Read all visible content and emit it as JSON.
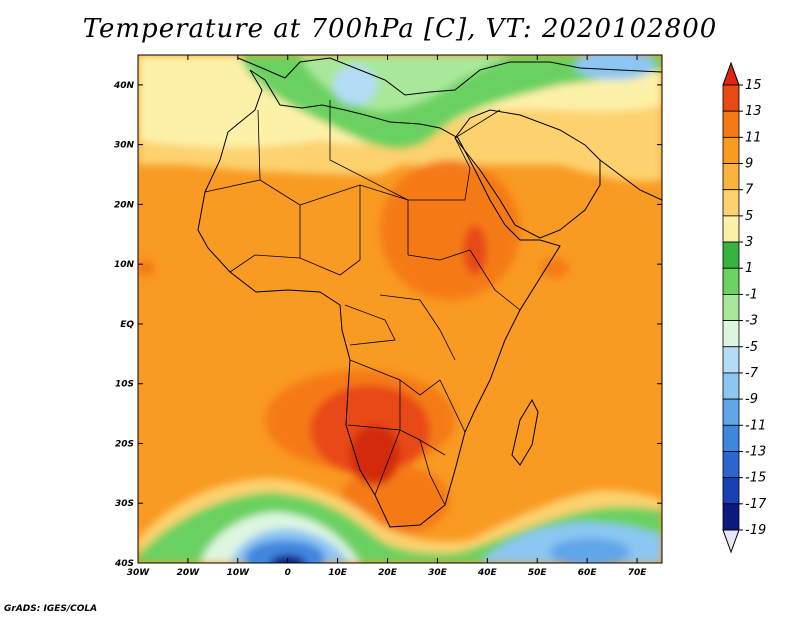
{
  "title": "Temperature at 700hPa [C], VT: 2020102800",
  "credit": "GrADS: IGES/COLA",
  "map": {
    "lon_range": [
      -30,
      75
    ],
    "lat_range": [
      -40,
      45
    ],
    "lon_ticks": [
      {
        "value": -30,
        "label": "30W"
      },
      {
        "value": -20,
        "label": "20W"
      },
      {
        "value": -10,
        "label": "10W"
      },
      {
        "value": 0,
        "label": "0"
      },
      {
        "value": 10,
        "label": "10E"
      },
      {
        "value": 20,
        "label": "20E"
      },
      {
        "value": 30,
        "label": "30E"
      },
      {
        "value": 40,
        "label": "40E"
      },
      {
        "value": 50,
        "label": "50E"
      },
      {
        "value": 60,
        "label": "60E"
      },
      {
        "value": 70,
        "label": "70E"
      }
    ],
    "lat_ticks": [
      {
        "value": 40,
        "label": "40N"
      },
      {
        "value": 30,
        "label": "30N"
      },
      {
        "value": 20,
        "label": "20N"
      },
      {
        "value": 10,
        "label": "10N"
      },
      {
        "value": 0,
        "label": "EQ"
      },
      {
        "value": -10,
        "label": "10S"
      },
      {
        "value": -20,
        "label": "20S"
      },
      {
        "value": -30,
        "label": "30S"
      },
      {
        "value": -40,
        "label": "40S"
      }
    ]
  },
  "legend": {
    "levels": [
      {
        "label": "15",
        "color": "#d32b0e"
      },
      {
        "label": "13",
        "color": "#e84a12"
      },
      {
        "label": "11",
        "color": "#f57a14"
      },
      {
        "label": "9",
        "color": "#f99a22"
      },
      {
        "label": "7",
        "color": "#fbb33e"
      },
      {
        "label": "5",
        "color": "#fdd16e"
      },
      {
        "label": "3",
        "color": "#fdf1a8"
      },
      {
        "label": "1",
        "color": "#37b33e"
      },
      {
        "label": "-1",
        "color": "#6bd160"
      },
      {
        "label": "-3",
        "color": "#a9e89a"
      },
      {
        "label": "-5",
        "color": "#ddf6e0"
      },
      {
        "label": "-7",
        "color": "#b4dcf6"
      },
      {
        "label": "-9",
        "color": "#8cc6f2"
      },
      {
        "label": "-11",
        "color": "#60a6ea"
      },
      {
        "label": "-13",
        "color": "#3f86df"
      },
      {
        "label": "-15",
        "color": "#2d66cf"
      },
      {
        "label": "-17",
        "color": "#1a40b5"
      },
      {
        "label": "-19",
        "color": "#0c1a80"
      }
    ],
    "top_cap_color": "#e02410",
    "bottom_cap_color": "#e6e8fa"
  }
}
